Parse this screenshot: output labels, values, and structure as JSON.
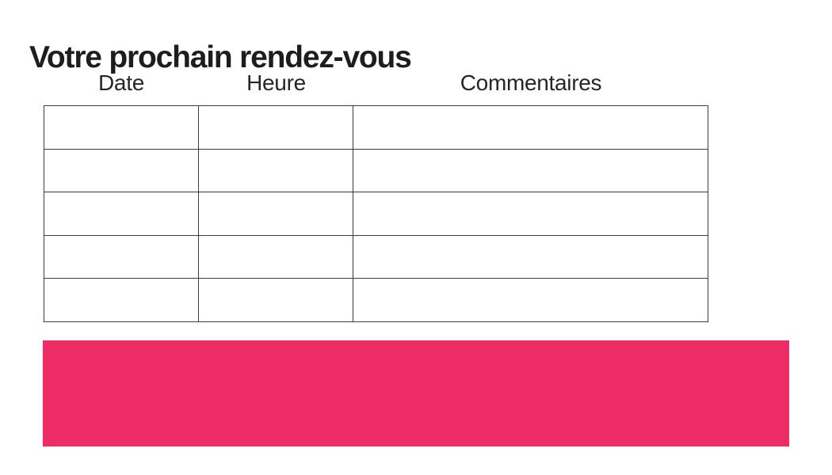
{
  "page": {
    "title": "Votre prochain rendez-vous"
  },
  "table": {
    "columns": [
      "Date",
      "Heure",
      "Commentaires"
    ],
    "row_count": 5,
    "rows": [
      [
        "",
        "",
        ""
      ],
      [
        "",
        "",
        ""
      ],
      [
        "",
        "",
        ""
      ],
      [
        "",
        "",
        ""
      ],
      [
        "",
        "",
        ""
      ]
    ],
    "border_color": "#3c3c3b"
  },
  "banner": {
    "color": "#EE2D66",
    "text": ""
  }
}
